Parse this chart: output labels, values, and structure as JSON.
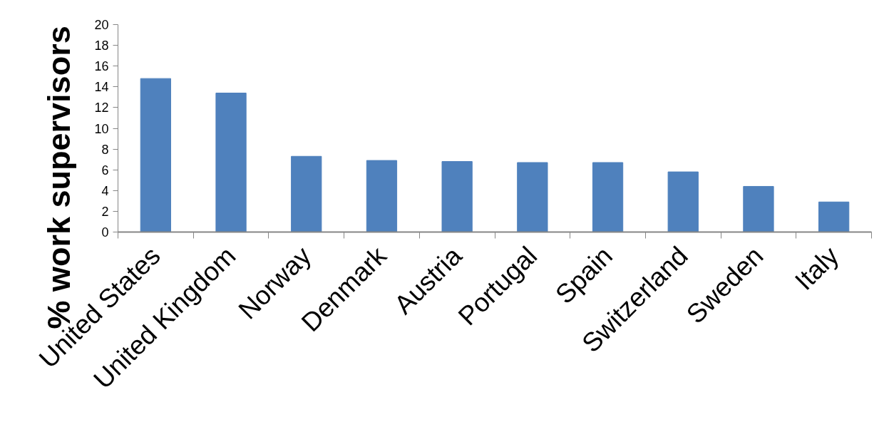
{
  "chart_data": {
    "type": "bar",
    "ylabel": "% work supervisors",
    "categories": [
      "United States",
      "United Kingdom",
      "Norway",
      "Denmark",
      "Austria",
      "Portugal",
      "Spain",
      "Switzerland",
      "Sweden",
      "Italy"
    ],
    "values": [
      14.8,
      13.4,
      7.3,
      6.9,
      6.8,
      6.7,
      6.7,
      5.8,
      4.4,
      2.9
    ],
    "color": "#4f81bd",
    "ylim": [
      0,
      20
    ],
    "yticks": [
      0,
      2,
      4,
      6,
      8,
      10,
      12,
      14,
      16,
      18,
      20
    ],
    "grid": false
  }
}
